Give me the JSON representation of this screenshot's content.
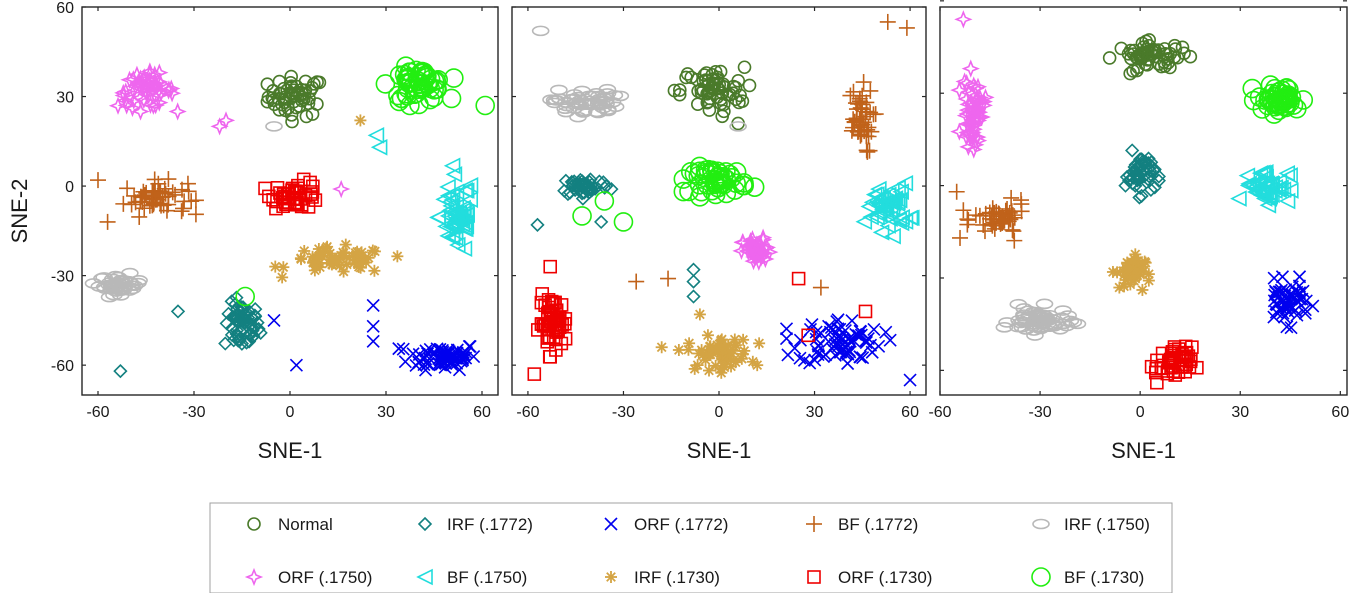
{
  "chart_data": {
    "type": "scatter",
    "panels": [
      {
        "xlim": [
          -65,
          65
        ],
        "ylim": [
          -70,
          60
        ],
        "xticks": [
          -60,
          -30,
          0,
          30,
          60
        ],
        "yticks": [
          -60,
          -30,
          0,
          30,
          60
        ],
        "xtick_labels": [
          "-60",
          "-30",
          "0",
          "30",
          "60"
        ],
        "ytick_labels": [
          "-60",
          "-30",
          "0",
          "30",
          "60"
        ],
        "xlabel": "SNE-1",
        "ylabel": "SNE-2",
        "clusters": [
          {
            "series": 0,
            "cx": 2,
            "cy": 30,
            "sx": 8,
            "sy": 6,
            "n": 55
          },
          {
            "series": 1,
            "cx": -15,
            "cy": -47,
            "sx": 5,
            "sy": 7,
            "n": 60
          },
          {
            "series": 2,
            "cx": 48,
            "cy": -57,
            "sx": 10,
            "sy": 4,
            "n": 70
          },
          {
            "series": 3,
            "cx": -42,
            "cy": -4,
            "sx": 9,
            "sy": 5,
            "n": 55
          },
          {
            "series": 4,
            "cx": -53,
            "cy": -33,
            "sx": 6,
            "sy": 3,
            "n": 45
          },
          {
            "series": 5,
            "cx": -45,
            "cy": 32,
            "sx": 8,
            "sy": 5,
            "n": 55
          },
          {
            "series": 6,
            "cx": 52,
            "cy": -10,
            "sx": 5,
            "sy": 12,
            "n": 55
          },
          {
            "series": 7,
            "cx": 15,
            "cy": -25,
            "sx": 14,
            "sy": 4,
            "n": 60
          },
          {
            "series": 8,
            "cx": 2,
            "cy": -3,
            "sx": 7,
            "sy": 4,
            "n": 45
          },
          {
            "series": 9,
            "cx": 40,
            "cy": 34,
            "sx": 8,
            "sy": 5,
            "n": 55
          }
        ],
        "outliers": [
          {
            "series": 1,
            "x": -53,
            "y": -62
          },
          {
            "series": 1,
            "x": -35,
            "y": -42
          },
          {
            "series": 2,
            "x": 2,
            "y": -60
          },
          {
            "series": 2,
            "x": -5,
            "y": -45
          },
          {
            "series": 2,
            "x": 26,
            "y": -40
          },
          {
            "series": 2,
            "x": 26,
            "y": -47
          },
          {
            "series": 2,
            "x": 26,
            "y": -52
          },
          {
            "series": 3,
            "x": -60,
            "y": 2
          },
          {
            "series": 3,
            "x": -57,
            "y": -12
          },
          {
            "series": 4,
            "x": -5,
            "y": 20
          },
          {
            "series": 5,
            "x": -22,
            "y": 20
          },
          {
            "series": 5,
            "x": -20,
            "y": 22
          },
          {
            "series": 5,
            "x": 16,
            "y": -1
          },
          {
            "series": 6,
            "x": 27,
            "y": 17
          },
          {
            "series": 6,
            "x": 28,
            "y": 13
          },
          {
            "series": 7,
            "x": 22,
            "y": 22
          },
          {
            "series": 9,
            "x": 61,
            "y": 27
          },
          {
            "series": 9,
            "x": -14,
            "y": -37
          }
        ]
      },
      {
        "xlim": [
          -65,
          65
        ],
        "ylim": [
          -70,
          60
        ],
        "xticks": [
          -60,
          -30,
          0,
          30,
          60
        ],
        "yticks": [
          -60,
          -30,
          0,
          30,
          60
        ],
        "xtick_labels": [
          "-60",
          "-30",
          "0",
          "30",
          "60"
        ],
        "ytick_labels": [],
        "xlabel": "SNE-1",
        "ylabel": "",
        "clusters": [
          {
            "series": 0,
            "cx": -2,
            "cy": 32,
            "sx": 9,
            "sy": 7,
            "n": 60
          },
          {
            "series": 1,
            "cx": -42,
            "cy": 0,
            "sx": 7,
            "sy": 3,
            "n": 50
          },
          {
            "series": 2,
            "cx": 38,
            "cy": -52,
            "sx": 12,
            "sy": 7,
            "n": 75
          },
          {
            "series": 3,
            "cx": 44,
            "cy": 22,
            "sx": 4,
            "sy": 10,
            "n": 45
          },
          {
            "series": 4,
            "cx": -42,
            "cy": 28,
            "sx": 9,
            "sy": 4,
            "n": 55
          },
          {
            "series": 5,
            "cx": 12,
            "cy": -22,
            "sx": 4,
            "sy": 4,
            "n": 45
          },
          {
            "series": 6,
            "cx": 53,
            "cy": -7,
            "sx": 6,
            "sy": 7,
            "n": 50
          },
          {
            "series": 7,
            "cx": 0,
            "cy": -56,
            "sx": 9,
            "sy": 5,
            "n": 60
          },
          {
            "series": 8,
            "cx": -52,
            "cy": -46,
            "sx": 4,
            "sy": 8,
            "n": 55
          },
          {
            "series": 9,
            "cx": 0,
            "cy": 2,
            "sx": 8,
            "sy": 4,
            "n": 50
          }
        ],
        "outliers": [
          {
            "series": 0,
            "x": -14,
            "y": 32
          },
          {
            "series": 0,
            "x": 6,
            "y": 21
          },
          {
            "series": 1,
            "x": -8,
            "y": -28
          },
          {
            "series": 1,
            "x": -8,
            "y": -32
          },
          {
            "series": 1,
            "x": -8,
            "y": -37
          },
          {
            "series": 1,
            "x": -57,
            "y": -13
          },
          {
            "series": 1,
            "x": -37,
            "y": -12
          },
          {
            "series": 2,
            "x": 60,
            "y": -65
          },
          {
            "series": 3,
            "x": 53,
            "y": 55
          },
          {
            "series": 3,
            "x": 59,
            "y": 53
          },
          {
            "series": 3,
            "x": -26,
            "y": -32
          },
          {
            "series": 3,
            "x": -16,
            "y": -31
          },
          {
            "series": 3,
            "x": 32,
            "y": -34
          },
          {
            "series": 4,
            "x": -56,
            "y": 52
          },
          {
            "series": 4,
            "x": 6,
            "y": 20
          },
          {
            "series": 7,
            "x": -18,
            "y": -54
          },
          {
            "series": 7,
            "x": -6,
            "y": -43
          },
          {
            "series": 7,
            "x": 12,
            "y": -60
          },
          {
            "series": 8,
            "x": -53,
            "y": -27
          },
          {
            "series": 8,
            "x": -58,
            "y": -63
          },
          {
            "series": 8,
            "x": 25,
            "y": -31
          },
          {
            "series": 8,
            "x": 28,
            "y": -50
          },
          {
            "series": 8,
            "x": 46,
            "y": -42
          },
          {
            "series": 9,
            "x": -36,
            "y": -5
          },
          {
            "series": 9,
            "x": -30,
            "y": -12
          },
          {
            "series": 9,
            "x": -43,
            "y": -10
          }
        ]
      },
      {
        "xlim": [
          -60,
          62
        ],
        "ylim": [
          -68,
          58
        ],
        "xticks": [
          -60,
          -30,
          0,
          30,
          60
        ],
        "yticks": [
          -60,
          -30,
          0,
          30,
          60
        ],
        "xtick_labels": [
          "-60",
          "-30",
          "0",
          "30",
          "60"
        ],
        "ytick_labels": [],
        "xlabel": "SNE-1",
        "ylabel": "",
        "clusters": [
          {
            "series": 0,
            "cx": 4,
            "cy": 42,
            "sx": 10,
            "sy": 4,
            "n": 60
          },
          {
            "series": 1,
            "cx": 0,
            "cy": 4,
            "sx": 4,
            "sy": 6,
            "n": 50
          },
          {
            "series": 2,
            "cx": 44,
            "cy": -38,
            "sx": 6,
            "sy": 6,
            "n": 55
          },
          {
            "series": 3,
            "cx": -42,
            "cy": -11,
            "sx": 7,
            "sy": 5,
            "n": 50
          },
          {
            "series": 4,
            "cx": -30,
            "cy": -44,
            "sx": 8,
            "sy": 4,
            "n": 60
          },
          {
            "series": 5,
            "cx": -50,
            "cy": 24,
            "sx": 3,
            "sy": 10,
            "n": 55
          },
          {
            "series": 6,
            "cx": 38,
            "cy": 0,
            "sx": 6,
            "sy": 5,
            "n": 50
          },
          {
            "series": 7,
            "cx": -3,
            "cy": -28,
            "sx": 4,
            "sy": 5,
            "n": 45
          },
          {
            "series": 8,
            "cx": 10,
            "cy": -58,
            "sx": 5,
            "sy": 5,
            "n": 45
          },
          {
            "series": 9,
            "cx": 42,
            "cy": 28,
            "sx": 6,
            "sy": 4,
            "n": 50
          }
        ],
        "outliers": [
          {
            "series": 3,
            "x": -55,
            "y": -2
          },
          {
            "series": 3,
            "x": -53,
            "y": -8
          },
          {
            "series": 3,
            "x": -54,
            "y": -17
          },
          {
            "series": 5,
            "x": -53,
            "y": 54
          },
          {
            "series": 8,
            "x": 5,
            "y": -64
          }
        ]
      }
    ],
    "series": [
      {
        "name": "Normal",
        "color": "#4a7a2a",
        "marker": "circle"
      },
      {
        "name": "IRF (.1772)",
        "color": "#138080",
        "marker": "diamond"
      },
      {
        "name": "ORF (.1772)",
        "color": "#0000ee",
        "marker": "x"
      },
      {
        "name": "BF (.1772)",
        "color": "#c0621a",
        "marker": "plus"
      },
      {
        "name": "IRF (.1750)",
        "color": "#b8b8b8",
        "marker": "ellipse"
      },
      {
        "name": "ORF (.1750)",
        "color": "#ee66ee",
        "marker": "star4"
      },
      {
        "name": "BF (.1750)",
        "color": "#22dddd",
        "marker": "triangle-left"
      },
      {
        "name": "IRF (.1730)",
        "color": "#d4a444",
        "marker": "asterisk"
      },
      {
        "name": "ORF (.1730)",
        "color": "#ee0000",
        "marker": "square"
      },
      {
        "name": "BF (.1730)",
        "color": "#22ee11",
        "marker": "big-circle"
      }
    ],
    "legend_position": "bottom"
  }
}
